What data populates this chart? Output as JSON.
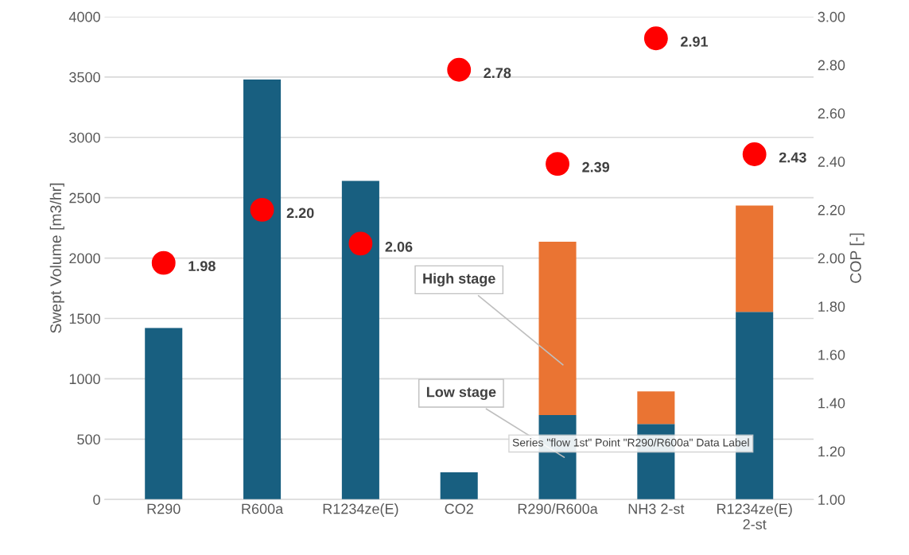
{
  "chart_data": {
    "type": "bar",
    "stacked": true,
    "categories": [
      "R290",
      "R600a",
      "R1234ze(E)",
      "CO2",
      "R290/R600a",
      "NH3 2-st",
      "R1234ze(E)\n2-st"
    ],
    "ylabel": "Swept Volume [m3/hr]",
    "y2label": "COP [-]",
    "ylim": [
      0,
      4000
    ],
    "yticks": [
      0,
      500,
      1000,
      1500,
      2000,
      2500,
      3000,
      3500,
      4000
    ],
    "y2lim": [
      1.0,
      3.0
    ],
    "y2ticks": [
      {
        "value": 1.0,
        "label": "1.00"
      },
      {
        "value": 1.2,
        "label": "1.20"
      },
      {
        "value": 1.4,
        "label": "1.40"
      },
      {
        "value": 1.6,
        "label": "1.60"
      },
      {
        "value": 1.8,
        "label": "1.80"
      },
      {
        "value": 2.0,
        "label": "2.00"
      },
      {
        "value": 2.2,
        "label": "2.20"
      },
      {
        "value": 2.4,
        "label": "2.40"
      },
      {
        "value": 2.6,
        "label": "2.60"
      },
      {
        "value": 2.8,
        "label": "2.80"
      },
      {
        "value": 3.0,
        "label": "3.00"
      }
    ],
    "grid": "y",
    "series": [
      {
        "color": "#185f80",
        "values": [
          1420,
          3480,
          2640,
          225,
          700,
          625,
          1555
        ]
      },
      {
        "color": "#ea7433",
        "values": [
          null,
          null,
          null,
          null,
          1435,
          270,
          880
        ]
      },
      {
        "type": "scatter",
        "axis": "y2",
        "color": "#ff0000",
        "marker": "circle",
        "values": [
          1.98,
          2.2,
          2.06,
          2.78,
          2.39,
          2.91,
          2.43
        ],
        "value_labels": [
          "1.98",
          "2.20",
          "2.06",
          "2.78",
          "2.39",
          "2.91",
          "2.43"
        ]
      }
    ],
    "annotations": [
      "High stage",
      "Low stage",
      "Series \"flow 1st\" Point \"R290/R600a\" Data Label"
    ]
  }
}
